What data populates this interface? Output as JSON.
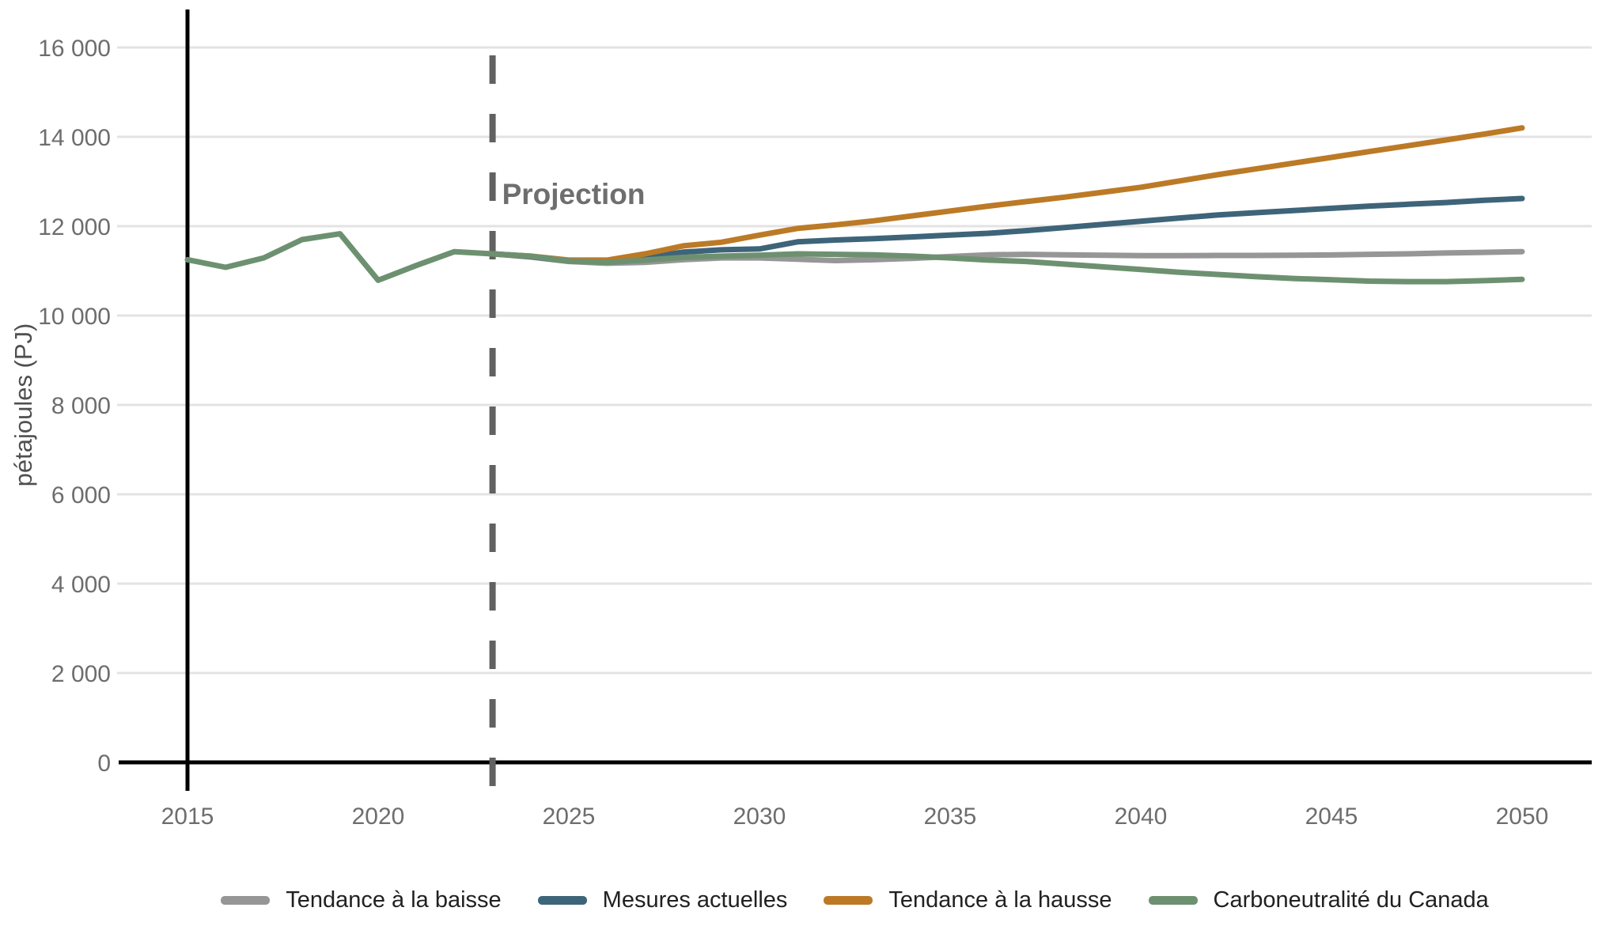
{
  "chart_data": {
    "type": "line",
    "title": "",
    "xlabel": "",
    "ylabel": "pétajoules (PJ)",
    "unit": "PJ",
    "grid": true,
    "gridline_color": "#e3e3e3",
    "axis_color": "#000000",
    "xlim": [
      2015,
      2050
    ],
    "ylim": [
      0,
      16000
    ],
    "xticks": [
      {
        "value": 2015,
        "label": "2015"
      },
      {
        "value": 2020,
        "label": "2020"
      },
      {
        "value": 2025,
        "label": "2025"
      },
      {
        "value": 2030,
        "label": "2030"
      },
      {
        "value": 2035,
        "label": "2035"
      },
      {
        "value": 2040,
        "label": "2040"
      },
      {
        "value": 2045,
        "label": "2045"
      },
      {
        "value": 2050,
        "label": "2050"
      }
    ],
    "yticks": [
      {
        "value": 0,
        "label": "0"
      },
      {
        "value": 2000,
        "label": "2 000"
      },
      {
        "value": 4000,
        "label": "4 000"
      },
      {
        "value": 6000,
        "label": "6 000"
      },
      {
        "value": 8000,
        "label": "8 000"
      },
      {
        "value": 10000,
        "label": "10 000"
      },
      {
        "value": 12000,
        "label": "12 000"
      },
      {
        "value": 14000,
        "label": "14 000"
      },
      {
        "value": 16000,
        "label": "16 000"
      }
    ],
    "annotation": {
      "label": "Projection",
      "x": 2023,
      "divider_color": "#616161",
      "label_color": "#6e6e6e"
    },
    "legend_position": "bottom",
    "series": [
      {
        "name": "Tendance à la baisse",
        "color": "#969696",
        "x": [
          2023,
          2024,
          2025,
          2026,
          2027,
          2028,
          2029,
          2030,
          2031,
          2032,
          2033,
          2034,
          2035,
          2036,
          2037,
          2038,
          2039,
          2040,
          2041,
          2042,
          2043,
          2044,
          2045,
          2046,
          2047,
          2048,
          2049,
          2050
        ],
        "values": [
          11380,
          11310,
          11210,
          11170,
          11190,
          11250,
          11290,
          11290,
          11260,
          11230,
          11250,
          11280,
          11320,
          11360,
          11370,
          11360,
          11350,
          11340,
          11340,
          11345,
          11345,
          11350,
          11355,
          11370,
          11380,
          11400,
          11415,
          11430
        ]
      },
      {
        "name": "Mesures actuelles",
        "color": "#3e6479",
        "x": [
          2023,
          2024,
          2025,
          2026,
          2027,
          2028,
          2029,
          2030,
          2031,
          2032,
          2033,
          2034,
          2035,
          2036,
          2037,
          2038,
          2039,
          2040,
          2041,
          2042,
          2043,
          2044,
          2045,
          2046,
          2047,
          2048,
          2049,
          2050
        ],
        "values": [
          11380,
          11320,
          11220,
          11220,
          11300,
          11420,
          11470,
          11490,
          11650,
          11690,
          11720,
          11760,
          11800,
          11840,
          11900,
          11970,
          12040,
          12110,
          12180,
          12250,
          12300,
          12350,
          12400,
          12450,
          12490,
          12530,
          12580,
          12620
        ]
      },
      {
        "name": "Tendance à la hausse",
        "color": "#bc7a26",
        "x": [
          2023,
          2024,
          2025,
          2026,
          2027,
          2028,
          2029,
          2030,
          2031,
          2032,
          2033,
          2034,
          2035,
          2036,
          2037,
          2038,
          2039,
          2040,
          2041,
          2042,
          2043,
          2044,
          2045,
          2046,
          2047,
          2048,
          2049,
          2050
        ],
        "values": [
          11380,
          11330,
          11240,
          11240,
          11380,
          11560,
          11640,
          11800,
          11950,
          12030,
          12120,
          12230,
          12340,
          12450,
          12550,
          12650,
          12760,
          12870,
          13010,
          13150,
          13280,
          13410,
          13540,
          13670,
          13800,
          13930,
          14060,
          14200
        ]
      },
      {
        "name": "Carboneutralité du Canada",
        "color": "#6d9170",
        "x": [
          2015,
          2016,
          2017,
          2018,
          2019,
          2020,
          2021,
          2022,
          2023,
          2024,
          2025,
          2026,
          2027,
          2028,
          2029,
          2030,
          2031,
          2032,
          2033,
          2034,
          2035,
          2036,
          2037,
          2038,
          2039,
          2040,
          2041,
          2042,
          2043,
          2044,
          2045,
          2046,
          2047,
          2048,
          2049,
          2050
        ],
        "values": [
          11250,
          11080,
          11290,
          11700,
          11830,
          10790,
          11120,
          11430,
          11380,
          11330,
          11220,
          11190,
          11240,
          11300,
          11330,
          11350,
          11380,
          11370,
          11360,
          11330,
          11290,
          11240,
          11210,
          11150,
          11090,
          11030,
          10970,
          10920,
          10870,
          10830,
          10800,
          10770,
          10760,
          10760,
          10780,
          10810
        ]
      }
    ]
  }
}
